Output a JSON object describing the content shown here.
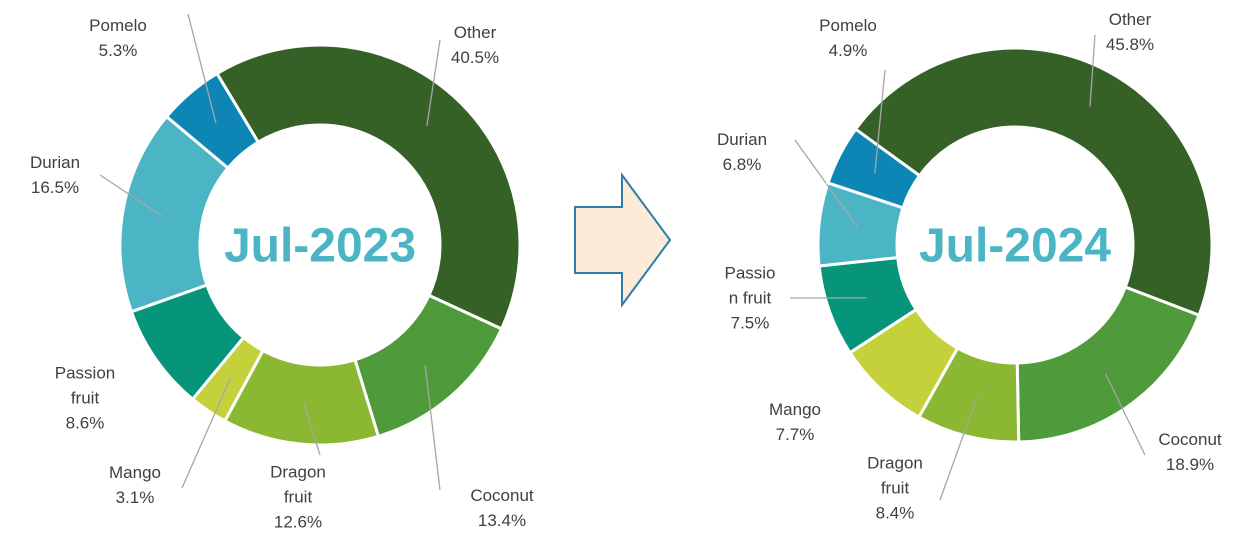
{
  "chart_data": [
    {
      "type": "pie",
      "donut": true,
      "title": "Jul-2023",
      "categories": [
        "Other",
        "Coconut",
        "Dragon fruit",
        "Mango",
        "Passion fruit",
        "Durian",
        "Pomelo"
      ],
      "values": [
        40.5,
        13.4,
        12.6,
        3.1,
        8.6,
        16.5,
        5.3
      ],
      "value_labels": [
        "40.5%",
        "13.4%",
        "12.6%",
        "3.1%",
        "8.6%",
        "16.5%",
        "5.3%"
      ],
      "colors": [
        "#356026",
        "#4f9a3a",
        "#8bb832",
        "#c5d13b",
        "#06957a",
        "#4bb5c5",
        "#0e86b5"
      ]
    },
    {
      "type": "pie",
      "donut": true,
      "title": "Jul-2024",
      "categories": [
        "Other",
        "Coconut",
        "Dragon fruit",
        "Mango",
        "Passion fruit",
        "Durian",
        "Pomelo"
      ],
      "values": [
        45.8,
        18.9,
        8.4,
        7.7,
        7.5,
        6.8,
        4.9
      ],
      "value_labels": [
        "45.8%",
        "18.9%",
        "8.4%",
        "7.7%",
        "7.5%",
        "6.8%",
        "4.9%"
      ],
      "colors": [
        "#356026",
        "#4f9a3a",
        "#8bb832",
        "#c5d13b",
        "#06957a",
        "#4bb5c5",
        "#0e86b5"
      ]
    }
  ]
}
